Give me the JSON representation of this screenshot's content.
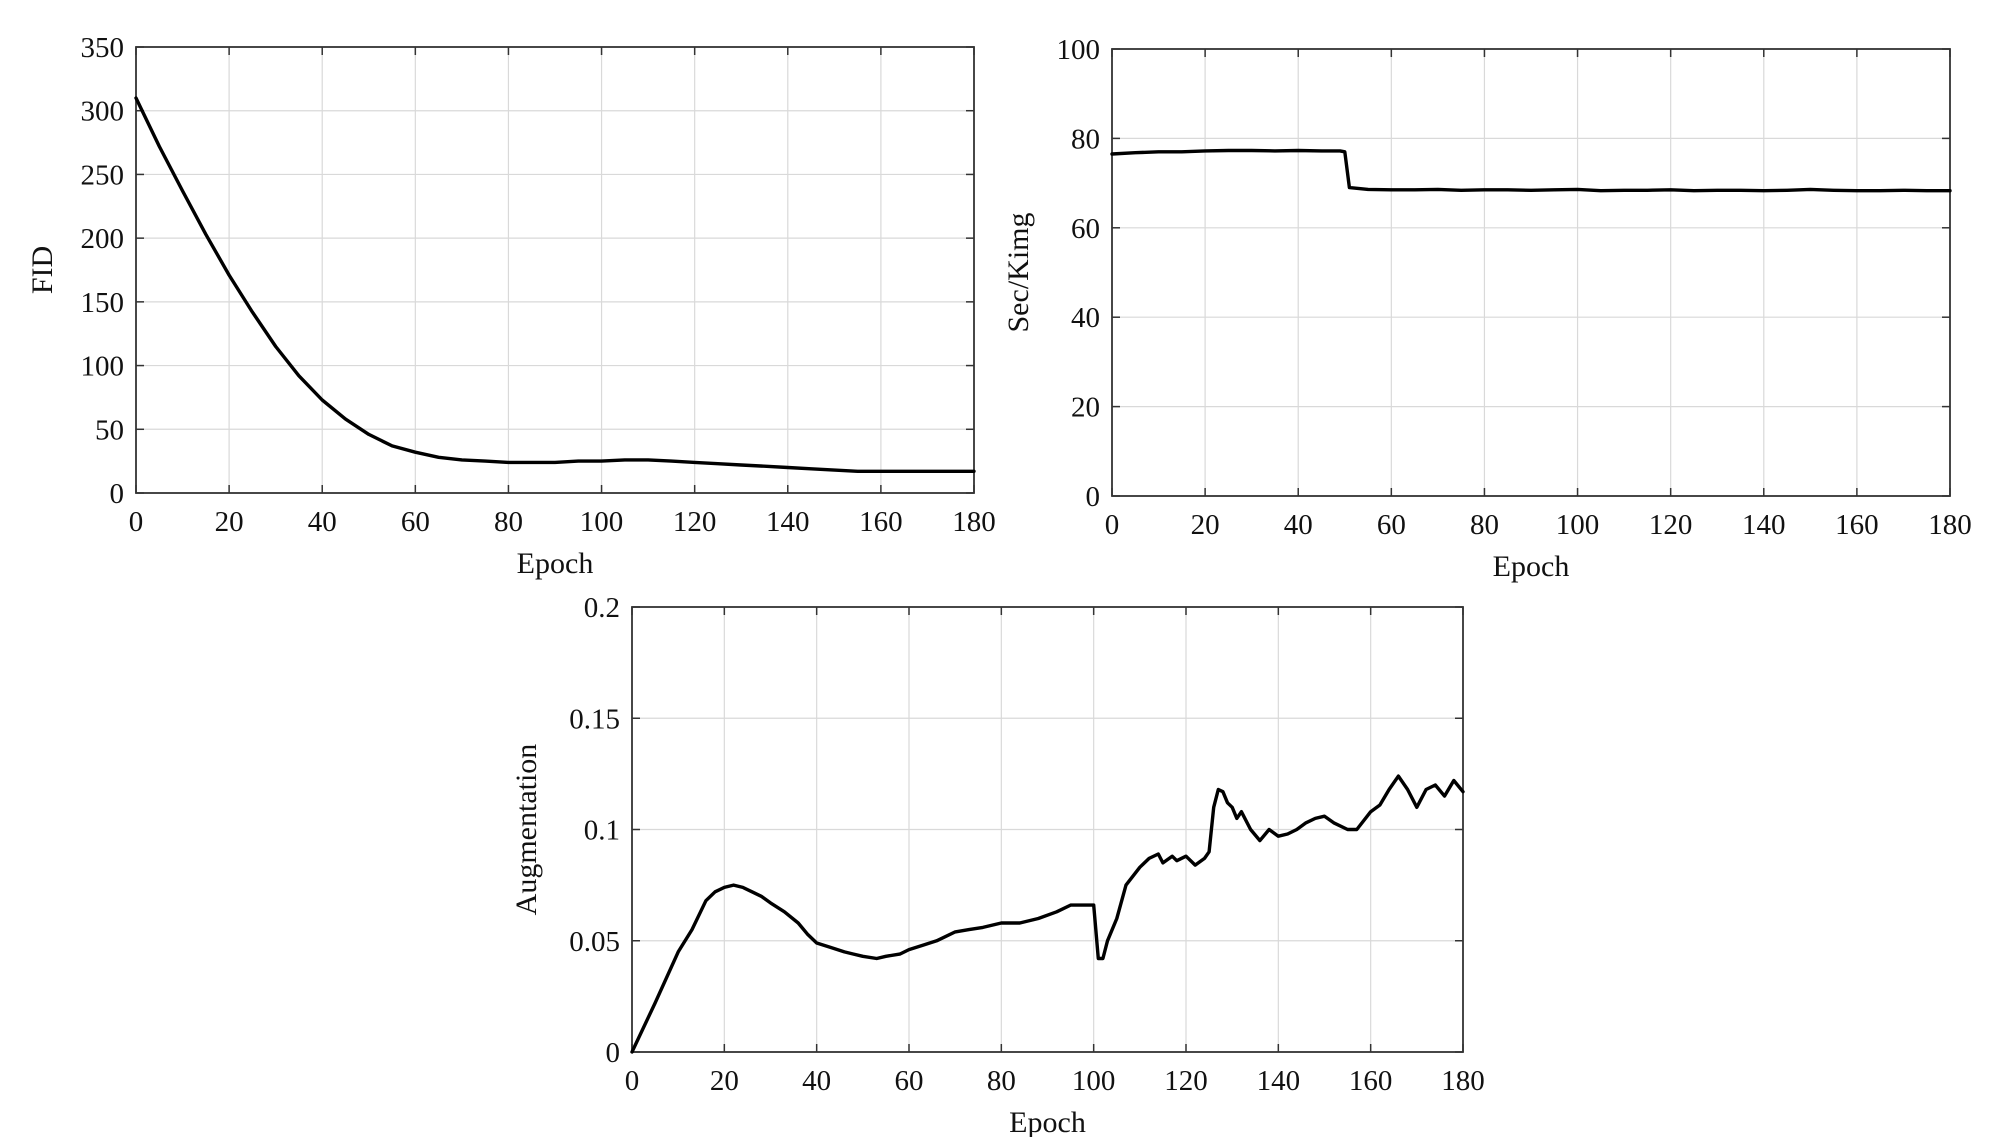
{
  "chart_data": [
    {
      "id": "fid",
      "type": "line",
      "xlabel": "Epoch",
      "ylabel": "FID",
      "xlim": [
        0,
        180
      ],
      "ylim": [
        0,
        350
      ],
      "xticks": [
        0,
        20,
        40,
        60,
        80,
        100,
        120,
        140,
        160,
        180
      ],
      "yticks": [
        0,
        50,
        100,
        150,
        200,
        250,
        300,
        350
      ],
      "grid": true,
      "color": "#000000",
      "series": [
        {
          "x": [
            0,
            5,
            10,
            15,
            20,
            25,
            30,
            35,
            40,
            45,
            50,
            55,
            60,
            65,
            70,
            75,
            80,
            85,
            90,
            95,
            100,
            105,
            110,
            115,
            120,
            125,
            130,
            135,
            140,
            145,
            150,
            155,
            160,
            165,
            170,
            175,
            180
          ],
          "y": [
            310,
            272,
            237,
            203,
            171,
            142,
            115,
            92,
            73,
            58,
            46,
            37,
            32,
            28,
            26,
            25,
            24,
            24,
            24,
            25,
            25,
            26,
            26,
            25,
            24,
            23,
            22,
            21,
            20,
            19,
            18,
            17,
            17,
            17,
            17,
            17,
            17
          ]
        }
      ]
    },
    {
      "id": "sec-kimg",
      "type": "line",
      "xlabel": "Epoch",
      "ylabel": "Sec/Kimg",
      "xlim": [
        0,
        180
      ],
      "ylim": [
        0,
        100
      ],
      "xticks": [
        0,
        20,
        40,
        60,
        80,
        100,
        120,
        140,
        160,
        180
      ],
      "yticks": [
        0,
        20,
        40,
        60,
        80,
        100
      ],
      "grid": true,
      "color": "#000000",
      "series": [
        {
          "x": [
            0,
            5,
            10,
            15,
            20,
            25,
            30,
            35,
            40,
            45,
            49,
            50,
            51,
            55,
            60,
            65,
            70,
            75,
            80,
            85,
            90,
            95,
            100,
            105,
            110,
            115,
            120,
            125,
            130,
            135,
            140,
            145,
            150,
            155,
            160,
            165,
            170,
            175,
            180
          ],
          "y": [
            76.5,
            76.8,
            77.0,
            77.0,
            77.2,
            77.3,
            77.3,
            77.2,
            77.3,
            77.2,
            77.2,
            77.0,
            69.0,
            68.6,
            68.5,
            68.5,
            68.6,
            68.4,
            68.5,
            68.5,
            68.4,
            68.5,
            68.6,
            68.3,
            68.4,
            68.4,
            68.5,
            68.3,
            68.4,
            68.4,
            68.3,
            68.4,
            68.6,
            68.4,
            68.3,
            68.3,
            68.4,
            68.3,
            68.3
          ]
        }
      ]
    },
    {
      "id": "augmentation",
      "type": "line",
      "xlabel": "Epoch",
      "ylabel": "Augmentation",
      "xlim": [
        0,
        180
      ],
      "ylim": [
        0,
        0.2
      ],
      "xticks": [
        0,
        20,
        40,
        60,
        80,
        100,
        120,
        140,
        160,
        180
      ],
      "yticks": [
        0,
        0.05,
        0.1,
        0.15,
        0.2
      ],
      "grid": true,
      "color": "#000000",
      "series": [
        {
          "x": [
            0,
            5,
            10,
            13,
            16,
            18,
            20,
            22,
            24,
            26,
            28,
            30,
            33,
            36,
            38,
            40,
            43,
            46,
            48,
            50,
            53,
            55,
            58,
            60,
            63,
            66,
            70,
            73,
            76,
            80,
            84,
            88,
            92,
            95,
            98,
            100,
            101,
            102,
            103,
            105,
            107,
            110,
            112,
            114,
            115,
            117,
            118,
            120,
            122,
            124,
            125,
            126,
            127,
            128,
            129,
            130,
            131,
            132,
            134,
            136,
            138,
            140,
            142,
            144,
            146,
            148,
            150,
            152,
            155,
            157,
            160,
            162,
            164,
            166,
            168,
            170,
            172,
            174,
            176,
            178,
            180
          ],
          "y": [
            0,
            0.022,
            0.045,
            0.055,
            0.068,
            0.072,
            0.074,
            0.075,
            0.074,
            0.072,
            0.07,
            0.067,
            0.063,
            0.058,
            0.053,
            0.049,
            0.047,
            0.045,
            0.044,
            0.043,
            0.042,
            0.043,
            0.044,
            0.046,
            0.048,
            0.05,
            0.054,
            0.055,
            0.056,
            0.058,
            0.058,
            0.06,
            0.063,
            0.066,
            0.066,
            0.066,
            0.042,
            0.042,
            0.05,
            0.06,
            0.075,
            0.083,
            0.087,
            0.089,
            0.085,
            0.088,
            0.086,
            0.088,
            0.084,
            0.087,
            0.09,
            0.11,
            0.118,
            0.117,
            0.112,
            0.11,
            0.105,
            0.108,
            0.1,
            0.095,
            0.1,
            0.097,
            0.098,
            0.1,
            0.103,
            0.105,
            0.106,
            0.103,
            0.1,
            0.1,
            0.108,
            0.111,
            0.118,
            0.124,
            0.118,
            0.11,
            0.118,
            0.12,
            0.115,
            0.122,
            0.117
          ]
        }
      ]
    }
  ]
}
